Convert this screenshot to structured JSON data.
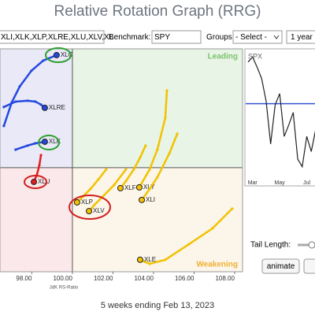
{
  "header": {
    "title": "Relative Rotation Graph (RRG)"
  },
  "toolbar": {
    "symbols": "XLI,XLK,XLP,XLRE,XLU,XLV,XL",
    "benchmark_label": "Benchmark:",
    "benchmark": "SPY",
    "groups_label": "Groups:",
    "groups": "- Select -",
    "period": "1 year"
  },
  "chart_data": [
    {
      "type": "scatter",
      "xlabel": "JdK RS-Ratio",
      "annotations": [
        "Leading",
        "Weakening"
      ],
      "xlim": [
        96.43,
        108.39
      ],
      "ylim": [
        94.87,
        105.86
      ],
      "xticks": [
        {
          "value": 98,
          "label": "98.00"
        },
        {
          "value": 100,
          "label": "100.00"
        },
        {
          "value": 102,
          "label": "102.00"
        },
        {
          "value": 104,
          "label": "104.00"
        },
        {
          "value": 106,
          "label": "106.00"
        },
        {
          "value": 108,
          "label": "108.00"
        }
      ],
      "series": [
        {
          "name": "XLC",
          "color": "#2448e0",
          "x": [
            96.62,
            97.01,
            97.4,
            97.98,
            98.56,
            99.22
          ],
          "values": [
            102.06,
            103.22,
            104.0,
            104.78,
            105.28,
            105.55
          ]
        },
        {
          "name": "XLRE",
          "color": "#2448e0",
          "x": [
            96.62,
            97.2,
            97.79,
            98.17,
            98.45,
            98.64
          ],
          "values": [
            102.99,
            103.26,
            103.3,
            103.26,
            103.11,
            102.95
          ]
        },
        {
          "name": "XLK",
          "color": "#2448e0",
          "x": [
            97.2,
            97.79,
            98.17,
            98.64
          ],
          "values": [
            100.89,
            101.09,
            101.2,
            101.28
          ]
        },
        {
          "name": "XLU",
          "color": "#e02020",
          "x": [
            98.45,
            98.37,
            98.25,
            98.1
          ],
          "values": [
            100.62,
            100.12,
            99.65,
            99.3
          ]
        },
        {
          "name": "XLF",
          "color": "#f2c200",
          "x": [
            103.61,
            103.34,
            103.03,
            102.64,
            102.37
          ],
          "values": [
            101.09,
            100.5,
            99.92,
            99.34,
            98.99
          ]
        },
        {
          "name": "XLY",
          "color": "#f2c200",
          "x": [
            104.66,
            104.58,
            104.19,
            103.81,
            103.3
          ],
          "values": [
            103.81,
            102.45,
            100.89,
            99.92,
            99.03
          ]
        },
        {
          "name": "XLI",
          "color": "#f2c200",
          "x": [
            105.17,
            104.78,
            104.19,
            103.81,
            103.42
          ],
          "values": [
            101.67,
            100.7,
            99.53,
            98.95,
            98.41
          ]
        },
        {
          "name": "XLP",
          "color": "#f2c200",
          "x": [
            101.67,
            101.28,
            100.89,
            100.5,
            100.23
          ],
          "values": [
            99.92,
            99.42,
            98.95,
            98.56,
            98.29
          ]
        },
        {
          "name": "XLV",
          "color": "#f2c200",
          "x": [
            102.64,
            102.06,
            101.48,
            101.09,
            100.82
          ],
          "values": [
            99.92,
            99.15,
            98.56,
            98.17,
            97.86
          ]
        },
        {
          "name": "XLE",
          "color": "#f2c200",
          "x": [
            107.88,
            106.91,
            105.75,
            104.58,
            103.81,
            103.34
          ],
          "values": [
            97.98,
            97.01,
            96.23,
            95.46,
            95.26,
            95.46
          ]
        }
      ]
    },
    {
      "type": "line",
      "title": "SPX",
      "color": "#222222",
      "reference": 59,
      "reference_color": "#3050d0",
      "categories": [
        null,
        "Mar",
        null,
        null,
        null,
        null,
        null,
        "May",
        null,
        null,
        null,
        null,
        null,
        "Jul",
        null,
        null
      ],
      "values": [
        92,
        96,
        88,
        79,
        61,
        27,
        58,
        67,
        33,
        42,
        52,
        15,
        9,
        33,
        21,
        39
      ],
      "ylim": [
        0,
        100
      ]
    }
  ],
  "controls": {
    "tail_length_label": "Tail Length:",
    "animate": "animate"
  },
  "footer": "5 weeks ending Feb 13, 2023"
}
